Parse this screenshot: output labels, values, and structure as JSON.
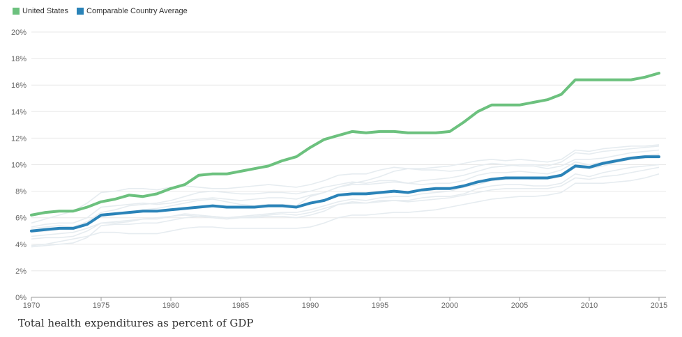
{
  "legend": {
    "us_label": "United States",
    "avg_label": "Comparable Country Average"
  },
  "colors": {
    "us": "#6cc17e",
    "avg": "#2a83b8",
    "background_lines": "#e6ecf0",
    "grid": "#e8e8e8",
    "axis": "#999999",
    "text": "#666666"
  },
  "caption": "Total health expenditures as percent of GDP",
  "chart_data": {
    "type": "line",
    "title": "",
    "xlabel": "",
    "ylabel": "",
    "xlim": [
      1970,
      2015
    ],
    "ylim": [
      0,
      20
    ],
    "x_ticks": [
      1970,
      1975,
      1980,
      1985,
      1990,
      1995,
      2000,
      2005,
      2010,
      2015
    ],
    "y_ticks": [
      0,
      2,
      4,
      6,
      8,
      10,
      12,
      14,
      16,
      18,
      20
    ],
    "y_tick_labels": [
      "0%",
      "2%",
      "4%",
      "6%",
      "8%",
      "10%",
      "12%",
      "14%",
      "16%",
      "18%",
      "20%"
    ],
    "grid": true,
    "legend_position": "top-left",
    "x": [
      1970,
      1971,
      1972,
      1973,
      1974,
      1975,
      1976,
      1977,
      1978,
      1979,
      1980,
      1981,
      1982,
      1983,
      1984,
      1985,
      1986,
      1987,
      1988,
      1989,
      1990,
      1991,
      1992,
      1993,
      1994,
      1995,
      1996,
      1997,
      1998,
      1999,
      2000,
      2001,
      2002,
      2003,
      2004,
      2005,
      2006,
      2007,
      2008,
      2009,
      2010,
      2011,
      2012,
      2013,
      2014,
      2015
    ],
    "series": [
      {
        "name": "United States",
        "values": [
          6.2,
          6.4,
          6.5,
          6.5,
          6.8,
          7.2,
          7.4,
          7.7,
          7.6,
          7.8,
          8.2,
          8.5,
          9.2,
          9.3,
          9.3,
          9.5,
          9.7,
          9.9,
          10.3,
          10.6,
          11.3,
          11.9,
          12.2,
          12.5,
          12.4,
          12.5,
          12.5,
          12.4,
          12.4,
          12.4,
          12.5,
          13.2,
          14.0,
          14.5,
          14.5,
          14.5,
          14.7,
          14.9,
          15.3,
          16.4,
          16.4,
          16.4,
          16.4,
          16.4,
          16.6,
          16.9
        ]
      },
      {
        "name": "Comparable Country Average",
        "values": [
          5.0,
          5.1,
          5.2,
          5.2,
          5.5,
          6.2,
          6.3,
          6.4,
          6.5,
          6.5,
          6.6,
          6.7,
          6.8,
          6.9,
          6.8,
          6.8,
          6.8,
          6.9,
          6.9,
          6.8,
          7.1,
          7.3,
          7.7,
          7.8,
          7.8,
          7.9,
          8.0,
          7.9,
          8.1,
          8.2,
          8.2,
          8.4,
          8.7,
          8.9,
          9.0,
          9.0,
          9.0,
          9.0,
          9.2,
          9.9,
          9.8,
          10.1,
          10.3,
          10.5,
          10.6,
          10.6
        ]
      }
    ],
    "background_series": [
      {
        "values": [
          3.9,
          4.0,
          4.2,
          4.4,
          4.6,
          4.9,
          4.9,
          4.8,
          4.8,
          4.8,
          5.0,
          5.2,
          5.3,
          5.3,
          5.2,
          5.2,
          5.2,
          5.2,
          5.2,
          5.2,
          5.3,
          5.6,
          6.0,
          6.2,
          6.2,
          6.3,
          6.4,
          6.4,
          6.5,
          6.6,
          6.8,
          7.0,
          7.2,
          7.4,
          7.5,
          7.6,
          7.6,
          7.7,
          7.9,
          8.6,
          8.6,
          8.6,
          8.7,
          8.8,
          9.0,
          9.3
        ]
      },
      {
        "values": [
          4.6,
          4.7,
          4.8,
          4.9,
          5.2,
          5.6,
          5.6,
          5.7,
          5.9,
          6.0,
          6.1,
          6.3,
          6.2,
          6.1,
          6.0,
          6.1,
          6.2,
          6.3,
          6.4,
          6.4,
          6.6,
          6.9,
          7.2,
          7.4,
          7.3,
          7.5,
          7.6,
          7.6,
          7.8,
          7.9,
          8.0,
          8.3,
          8.5,
          8.8,
          8.9,
          9.0,
          8.9,
          8.9,
          9.1,
          9.8,
          9.7,
          9.9,
          10.2,
          10.4,
          10.5,
          10.7
        ]
      },
      {
        "values": [
          5.3,
          5.5,
          5.6,
          5.6,
          6.0,
          6.8,
          6.9,
          7.0,
          7.1,
          7.0,
          7.1,
          7.3,
          7.4,
          7.5,
          7.4,
          7.3,
          7.4,
          7.5,
          7.5,
          7.4,
          7.7,
          7.9,
          8.3,
          8.5,
          8.5,
          8.6,
          8.7,
          8.6,
          8.8,
          8.9,
          9.0,
          9.2,
          9.5,
          9.8,
          9.9,
          10.0,
          10.0,
          9.9,
          10.2,
          10.9,
          10.8,
          11.0,
          11.1,
          11.2,
          11.3,
          11.4
        ]
      },
      {
        "values": [
          5.6,
          5.9,
          6.2,
          6.5,
          7.1,
          7.9,
          8.0,
          8.2,
          8.2,
          8.1,
          8.3,
          8.4,
          8.3,
          8.2,
          8.2,
          8.3,
          8.4,
          8.5,
          8.4,
          8.3,
          8.5,
          8.8,
          9.2,
          9.3,
          9.3,
          9.6,
          9.8,
          9.7,
          9.7,
          9.8,
          9.9,
          10.1,
          10.3,
          10.4,
          10.3,
          10.4,
          10.3,
          10.2,
          10.4,
          11.1,
          11.0,
          11.2,
          11.3,
          11.4,
          11.4,
          11.5
        ]
      },
      {
        "values": [
          3.8,
          3.9,
          4.0,
          4.1,
          4.5,
          5.4,
          5.5,
          5.5,
          5.6,
          5.6,
          5.8,
          6.0,
          6.1,
          6.1,
          6.0,
          6.0,
          6.0,
          6.1,
          6.1,
          6.0,
          6.2,
          6.5,
          7.0,
          7.2,
          7.1,
          7.3,
          7.3,
          7.3,
          7.5,
          7.6,
          7.6,
          7.8,
          8.2,
          8.4,
          8.5,
          8.5,
          8.4,
          8.4,
          8.6,
          9.3,
          9.1,
          9.4,
          9.6,
          9.8,
          9.9,
          10.0
        ]
      },
      {
        "values": [
          4.9,
          5.0,
          5.1,
          5.3,
          5.7,
          6.4,
          6.6,
          6.9,
          7.0,
          7.1,
          7.3,
          7.6,
          7.9,
          8.0,
          7.9,
          7.8,
          7.8,
          7.9,
          7.9,
          7.8,
          8.0,
          8.3,
          8.5,
          8.7,
          8.6,
          8.8,
          8.8,
          8.6,
          8.5,
          8.6,
          8.6,
          8.8,
          9.2,
          9.4,
          9.4,
          9.5,
          9.4,
          9.3,
          9.6,
          10.2,
          10.0,
          10.2,
          10.4,
          10.5,
          10.7,
          10.8
        ]
      },
      {
        "values": [
          5.2,
          5.3,
          5.4,
          5.3,
          5.6,
          6.1,
          6.2,
          6.4,
          6.6,
          6.7,
          6.9,
          7.1,
          7.3,
          7.4,
          7.2,
          7.0,
          6.9,
          7.0,
          7.0,
          6.9,
          7.6,
          7.9,
          8.3,
          8.6,
          8.8,
          9.1,
          9.5,
          9.7,
          9.6,
          9.6,
          9.5,
          9.6,
          9.9,
          10.1,
          10.0,
          9.9,
          9.9,
          9.7,
          9.9,
          10.4,
          10.4,
          10.5,
          10.7,
          10.9,
          11.0,
          11.1
        ]
      },
      {
        "values": [
          4.4,
          4.5,
          4.5,
          4.6,
          5.0,
          5.6,
          5.7,
          5.8,
          5.9,
          5.9,
          6.1,
          6.2,
          6.1,
          6.0,
          5.9,
          6.0,
          6.1,
          6.2,
          6.3,
          6.2,
          6.4,
          6.7,
          7.0,
          7.1,
          7.1,
          7.2,
          7.3,
          7.2,
          7.3,
          7.4,
          7.5,
          7.7,
          7.9,
          8.1,
          8.2,
          8.2,
          8.2,
          8.2,
          8.4,
          9.0,
          8.9,
          9.1,
          9.2,
          9.4,
          9.6,
          9.8
        ]
      }
    ]
  }
}
